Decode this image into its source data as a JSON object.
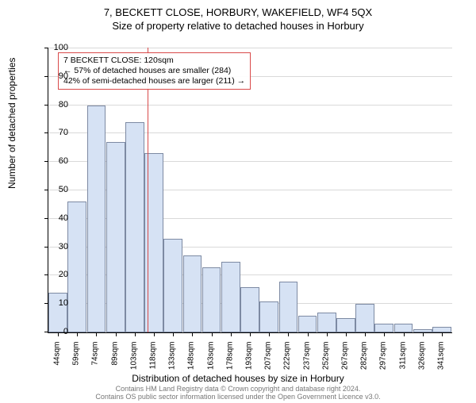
{
  "title_line1": "7, BECKETT CLOSE, HORBURY, WAKEFIELD, WF4 5QX",
  "title_line2": "Size of property relative to detached houses in Horbury",
  "y_axis_label": "Number of detached properties",
  "x_axis_label": "Distribution of detached houses by size in Horbury",
  "footer_line1": "Contains HM Land Registry data © Crown copyright and database right 2024.",
  "footer_line2": "Contains OS public sector information licensed under the Open Government Licence v3.0.",
  "chart": {
    "type": "bar",
    "ylim": [
      0,
      100
    ],
    "ytick_step": 10,
    "background_color": "#ffffff",
    "grid_color": "#d9d9d9",
    "bar_fill": "#d6e2f4",
    "bar_border": "#7d8aa3",
    "axis_color": "#000000",
    "tick_font_size": 11,
    "categories": [
      "44sqm",
      "59sqm",
      "74sqm",
      "89sqm",
      "103sqm",
      "118sqm",
      "133sqm",
      "148sqm",
      "163sqm",
      "178sqm",
      "193sqm",
      "207sqm",
      "222sqm",
      "237sqm",
      "252sqm",
      "267sqm",
      "282sqm",
      "297sqm",
      "311sqm",
      "326sqm",
      "341sqm"
    ],
    "values": [
      14,
      46,
      80,
      67,
      74,
      63,
      33,
      27,
      23,
      25,
      16,
      11,
      18,
      6,
      7,
      5,
      10,
      3,
      3,
      1,
      2
    ],
    "reference_line": {
      "x_index": 5.18,
      "color": "#d94a4a"
    },
    "annotation": {
      "border_color": "#d94a4a",
      "line1": "7 BECKETT CLOSE: 120sqm",
      "line2": "← 57% of detached houses are smaller (284)",
      "line3": "42% of semi-detached houses are larger (211) →"
    }
  }
}
